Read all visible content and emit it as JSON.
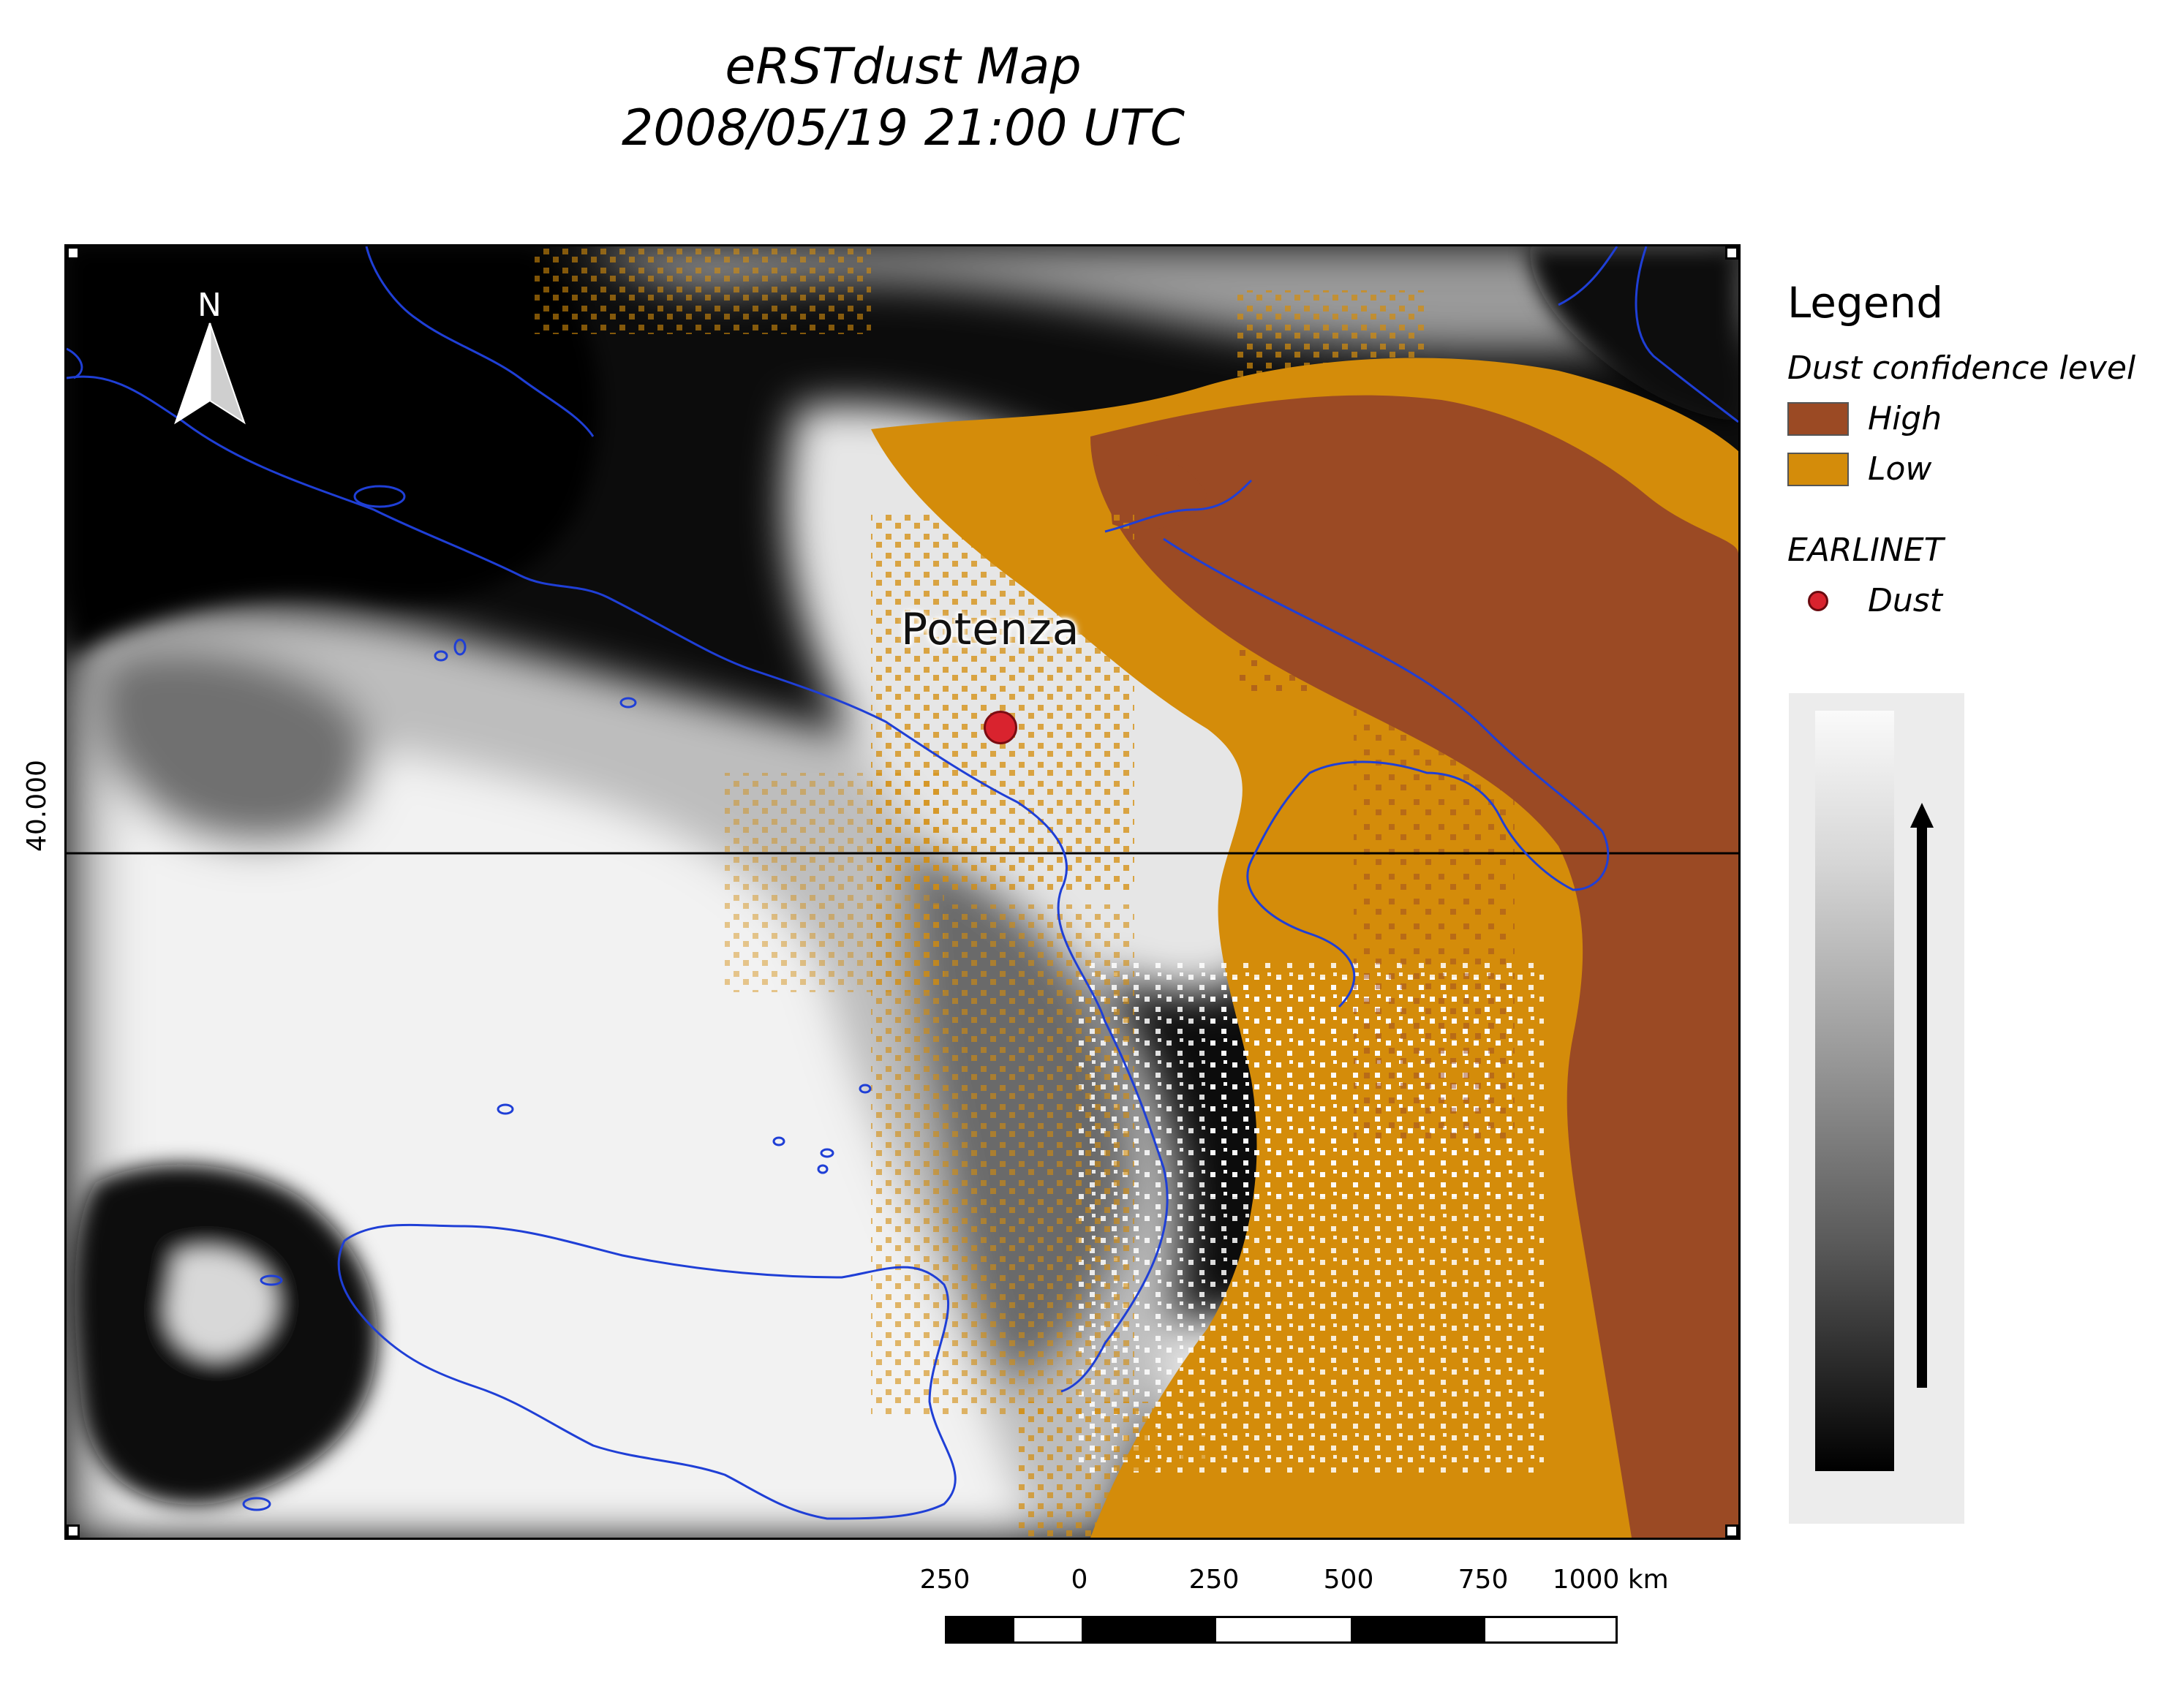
{
  "title": {
    "line1": "eRSTdust Map",
    "line2": "2008/05/19 21:00 UTC"
  },
  "map": {
    "latitude_label": "40.000",
    "north_label": "N",
    "site": {
      "name": "Potenza",
      "category": "Dust"
    },
    "coastline_color": "#1f3fd6",
    "icons": [
      "north-arrow-icon",
      "site-marker-icon"
    ]
  },
  "legend": {
    "title": "Legend",
    "dust_heading": "Dust confidence level",
    "classes": [
      {
        "label": "High",
        "color": "#9b4a24"
      },
      {
        "label": "Low",
        "color": "#d48c0a"
      }
    ],
    "network_heading": "EARLINET",
    "network_item": {
      "label": "Dust",
      "color": "#d9232e"
    },
    "colorbar": {
      "from": "#000000",
      "to": "#fafafa",
      "direction": "up"
    }
  },
  "scale_bar": {
    "ticks": [
      "250",
      "0",
      "250",
      "500",
      "750",
      "1000 km"
    ]
  }
}
